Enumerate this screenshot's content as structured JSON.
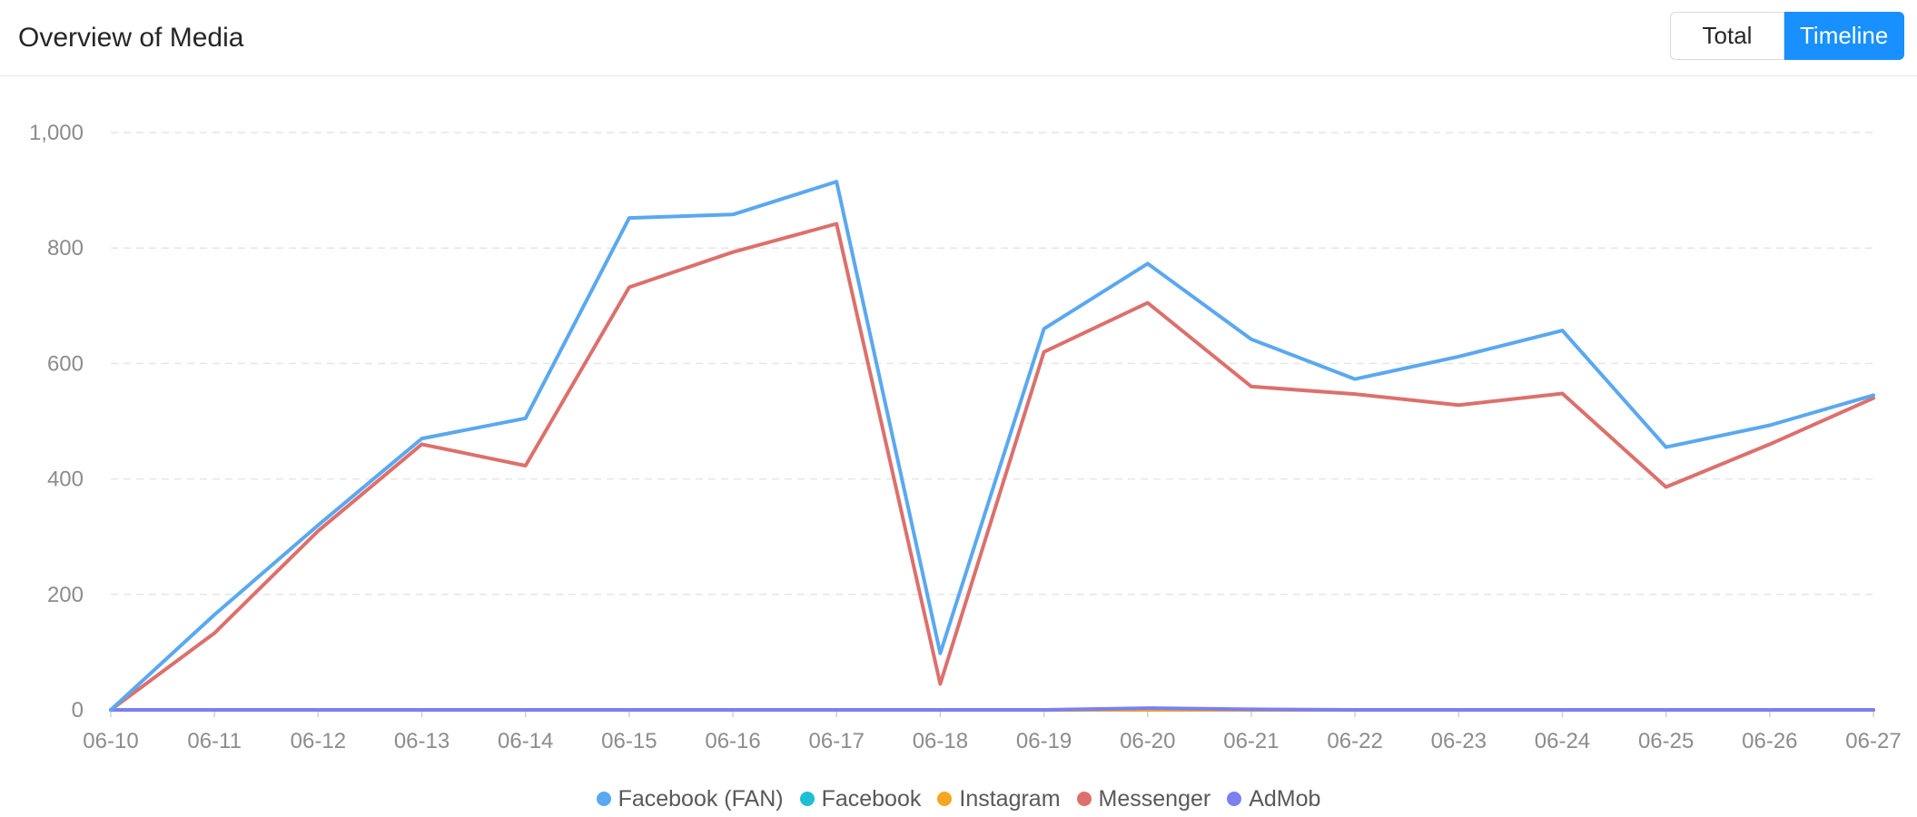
{
  "header": {
    "title": "Overview of Media",
    "toggle": {
      "options": [
        "Total",
        "Timeline"
      ],
      "selected": "Timeline"
    }
  },
  "colors": {
    "accent": "#1890ff"
  },
  "chart_data": {
    "type": "line",
    "title": "Overview of Media",
    "xlabel": "",
    "ylabel": "",
    "x": [
      "06-10",
      "06-11",
      "06-12",
      "06-13",
      "06-14",
      "06-15",
      "06-16",
      "06-17",
      "06-18",
      "06-19",
      "06-20",
      "06-21",
      "06-22",
      "06-23",
      "06-24",
      "06-25",
      "06-26",
      "06-27"
    ],
    "ylim": [
      0,
      1000
    ],
    "yticks": [
      0,
      200,
      400,
      600,
      800,
      1000
    ],
    "ytick_labels": [
      "0",
      "200",
      "400",
      "600",
      "800",
      "1,000"
    ],
    "grid": true,
    "legend_position": "bottom",
    "series": [
      {
        "name": "Facebook (FAN)",
        "color": "#5aa8f0",
        "values": [
          0,
          165,
          320,
          470,
          505,
          852,
          858,
          915,
          98,
          660,
          773,
          642,
          573,
          612,
          657,
          455,
          493,
          545
        ]
      },
      {
        "name": "Facebook",
        "color": "#1ebfd4",
        "values": [
          0,
          0,
          0,
          0,
          0,
          0,
          0,
          0,
          0,
          0,
          0,
          0,
          0,
          0,
          0,
          0,
          0,
          0
        ]
      },
      {
        "name": "Instagram",
        "color": "#f5a623",
        "values": [
          0,
          0,
          0,
          0,
          0,
          0,
          0,
          0,
          0,
          0,
          0,
          0,
          0,
          0,
          0,
          0,
          0,
          0
        ]
      },
      {
        "name": "Messenger",
        "color": "#dc706c",
        "values": [
          0,
          133,
          310,
          460,
          423,
          732,
          793,
          842,
          45,
          620,
          705,
          560,
          547,
          528,
          548,
          386,
          460,
          540
        ]
      },
      {
        "name": "AdMob",
        "color": "#7b7ff0",
        "values": [
          0,
          0,
          0,
          0,
          0,
          0,
          0,
          0,
          0,
          0,
          3,
          1,
          0,
          0,
          0,
          0,
          0,
          0
        ]
      }
    ]
  }
}
